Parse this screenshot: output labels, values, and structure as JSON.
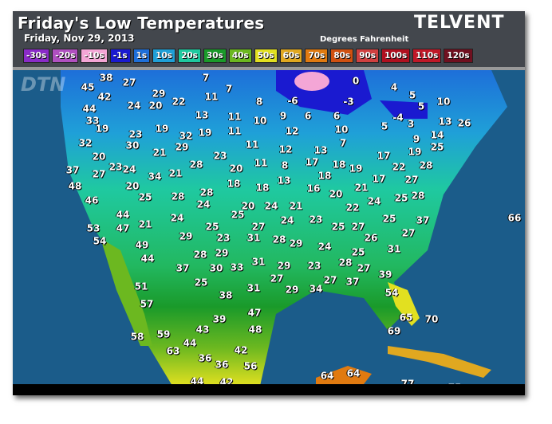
{
  "header": {
    "title": "Friday's Low Temperatures",
    "date": "Friday, Nov 29, 2013",
    "units": "Degrees Fahrenheit",
    "logo": "TELVENT",
    "watermark": "DTN"
  },
  "legend": [
    {
      "label": "-30s",
      "color": "#8a2bc8"
    },
    {
      "label": "-20s",
      "color": "#b050c0"
    },
    {
      "label": "-10s",
      "color": "#f4a6d6"
    },
    {
      "label": "-1s",
      "color": "#1a1ad0"
    },
    {
      "label": "1s",
      "color": "#1e6fd9"
    },
    {
      "label": "10s",
      "color": "#1fa0d8"
    },
    {
      "label": "20s",
      "color": "#1fc9a0"
    },
    {
      "label": "30s",
      "color": "#1a9a2a"
    },
    {
      "label": "40s",
      "color": "#6cb820"
    },
    {
      "label": "50s",
      "color": "#e2e020"
    },
    {
      "label": "60s",
      "color": "#e0a820"
    },
    {
      "label": "70s",
      "color": "#e07a10"
    },
    {
      "label": "80s",
      "color": "#d05010"
    },
    {
      "label": "90s",
      "color": "#d04040"
    },
    {
      "label": "100s",
      "color": "#b01020"
    },
    {
      "label": "110s",
      "color": "#c01828"
    },
    {
      "label": "120s",
      "color": "#701020"
    }
  ],
  "temperatures": [
    "38",
    "27",
    "7",
    "0",
    "4",
    "5",
    "45",
    "29",
    "42",
    "22",
    "11",
    "8",
    "-6",
    "-3",
    "10",
    "5",
    "7",
    "44",
    "24",
    "20",
    "9",
    "6",
    "6",
    "5",
    "-4",
    "3",
    "13",
    "26",
    "13",
    "11",
    "10",
    "33",
    "19",
    "23",
    "19",
    "32",
    "19",
    "11",
    "12",
    "10",
    "14",
    "32",
    "30",
    "29",
    "11",
    "12",
    "13",
    "7",
    "9",
    "25",
    "20",
    "21",
    "23",
    "17",
    "19",
    "37",
    "23",
    "24",
    "28",
    "20",
    "11",
    "8",
    "17",
    "18",
    "19",
    "22",
    "28",
    "27",
    "34",
    "21",
    "18",
    "27",
    "48",
    "20",
    "18",
    "18",
    "13",
    "16",
    "21",
    "17",
    "46",
    "25",
    "28",
    "28",
    "20",
    "24",
    "25",
    "28",
    "24",
    "20",
    "24",
    "21",
    "22",
    "44",
    "24",
    "25",
    "24",
    "23",
    "25",
    "37",
    "66",
    "53",
    "47",
    "21",
    "25",
    "27",
    "25",
    "27",
    "27",
    "54",
    "49",
    "29",
    "23",
    "31",
    "28",
    "29",
    "24",
    "26",
    "44",
    "28",
    "29",
    "25",
    "31",
    "37",
    "30",
    "33",
    "31",
    "29",
    "23",
    "28",
    "27",
    "39",
    "25",
    "27",
    "29",
    "34",
    "27",
    "37",
    "51",
    "31",
    "54",
    "38",
    "57",
    "47",
    "65",
    "70",
    "39",
    "48",
    "69",
    "59",
    "43",
    "58",
    "44",
    "63",
    "42",
    "36",
    "36",
    "56",
    "64",
    "64",
    "44",
    "42",
    "77",
    "75"
  ]
}
